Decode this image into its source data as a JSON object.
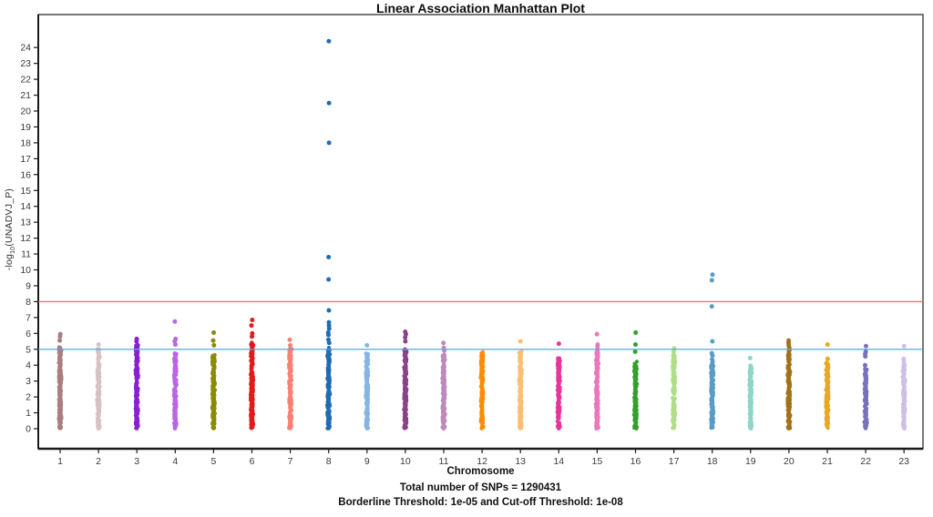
{
  "chart_data": {
    "type": "scatter",
    "title": "Linear Association Manhattan Plot",
    "xlabel": "Chromosome",
    "ylabel": "-log10(UNADVJ_P)",
    "ylabel_parts": {
      "prefix": "-log",
      "sub": "10",
      "suffix": "(UNADVJ_P)"
    },
    "footnote1": "Total number of SNPs = 1290431",
    "footnote2": "Borderline Threshold: 1e-05 and Cut-off Threshold: 1e-08",
    "ylim": [
      0,
      24.5
    ],
    "y_ticks": [
      0,
      1,
      2,
      3,
      4,
      5,
      6,
      7,
      8,
      9,
      10,
      11,
      12,
      13,
      14,
      15,
      16,
      17,
      18,
      19,
      20,
      21,
      22,
      23,
      24
    ],
    "x_tick_labels": [
      "1",
      "2",
      "3",
      "4",
      "5",
      "6",
      "7",
      "8",
      "9",
      "10",
      "11",
      "12",
      "13",
      "14",
      "15",
      "16",
      "17",
      "18",
      "19",
      "20",
      "21",
      "22",
      "23"
    ],
    "grid": false,
    "legend": "none",
    "thresholds": {
      "borderline": {
        "value": 5,
        "p_label": "1e-05",
        "color": "#55aadf"
      },
      "cutoff": {
        "value": 8,
        "p_label": "1e-08",
        "color": "#fd6e42"
      }
    },
    "total_snps": 1290431,
    "chromosomes": [
      {
        "label": "1",
        "color": "#a87e7e",
        "dense_max": 5.15,
        "outliers": [
          5.95,
          5.8,
          5.55
        ]
      },
      {
        "label": "2",
        "color": "#d6c2c2",
        "dense_max": 5.05,
        "outliers": [
          5.3
        ]
      },
      {
        "label": "3",
        "color": "#8a1fd1",
        "dense_max": 5.3,
        "outliers": [
          5.65,
          5.5
        ]
      },
      {
        "label": "4",
        "color": "#b966e0",
        "dense_max": 4.75,
        "outliers": [
          6.75,
          5.65,
          5.5,
          5.3
        ]
      },
      {
        "label": "5",
        "color": "#8b8b00",
        "dense_max": 4.65,
        "outliers": [
          6.05,
          5.55,
          5.25
        ]
      },
      {
        "label": "6",
        "color": "#e31a1c",
        "dense_max": 5.45,
        "outliers": [
          6.85,
          6.5,
          6.0,
          5.8
        ]
      },
      {
        "label": "7",
        "color": "#fb8072",
        "dense_max": 5.05,
        "outliers": [
          5.6,
          5.25
        ]
      },
      {
        "label": "8",
        "color": "#1f6bb4",
        "dense_max": 5.15,
        "outliers": [
          24.4,
          20.5,
          18.0,
          10.8,
          9.4,
          7.45,
          6.7,
          6.5,
          6.3,
          6.05,
          5.9,
          5.6,
          5.4
        ]
      },
      {
        "label": "9",
        "color": "#85b5e2",
        "dense_max": 4.75,
        "outliers": [
          5.25
        ]
      },
      {
        "label": "10",
        "color": "#8b4289",
        "dense_max": 5.1,
        "outliers": [
          6.1,
          5.95,
          5.75,
          5.5
        ]
      },
      {
        "label": "11",
        "color": "#bd8abd",
        "dense_max": 4.65,
        "outliers": [
          5.4,
          5.1,
          4.9
        ]
      },
      {
        "label": "12",
        "color": "#ff8c00",
        "dense_max": 4.85,
        "outliers": []
      },
      {
        "label": "13",
        "color": "#fdbf6f",
        "dense_max": 4.9,
        "outliers": [
          5.5
        ]
      },
      {
        "label": "14",
        "color": "#e7359b",
        "dense_max": 4.5,
        "outliers": [
          5.35
        ]
      },
      {
        "label": "15",
        "color": "#ec77bd",
        "dense_max": 4.95,
        "outliers": [
          5.95,
          5.3,
          5.15
        ]
      },
      {
        "label": "16",
        "color": "#33a02c",
        "dense_max": 4.25,
        "outliers": [
          6.05,
          5.3,
          4.85
        ]
      },
      {
        "label": "17",
        "color": "#aede87",
        "dense_max": 4.65,
        "outliers": [
          5.05,
          4.85
        ]
      },
      {
        "label": "18",
        "color": "#579dc4",
        "dense_max": 4.4,
        "outliers": [
          9.7,
          9.35,
          7.7,
          5.5,
          4.75,
          4.6
        ]
      },
      {
        "label": "19",
        "color": "#8ed6c8",
        "dense_max": 4.05,
        "outliers": [
          4.45
        ]
      },
      {
        "label": "20",
        "color": "#a3701b",
        "dense_max": 4.95,
        "outliers": [
          5.55,
          5.4,
          5.25,
          5.1
        ]
      },
      {
        "label": "21",
        "color": "#e9a820",
        "dense_max": 4.2,
        "outliers": [
          5.3,
          4.4
        ]
      },
      {
        "label": "22",
        "color": "#7872bc",
        "dense_max": 3.85,
        "outliers": [
          5.2,
          4.85,
          4.7,
          4.55,
          4.0
        ]
      },
      {
        "label": "23",
        "color": "#cdbfe6",
        "dense_max": 4.15,
        "outliers": [
          5.2,
          4.4,
          4.3
        ]
      }
    ]
  }
}
